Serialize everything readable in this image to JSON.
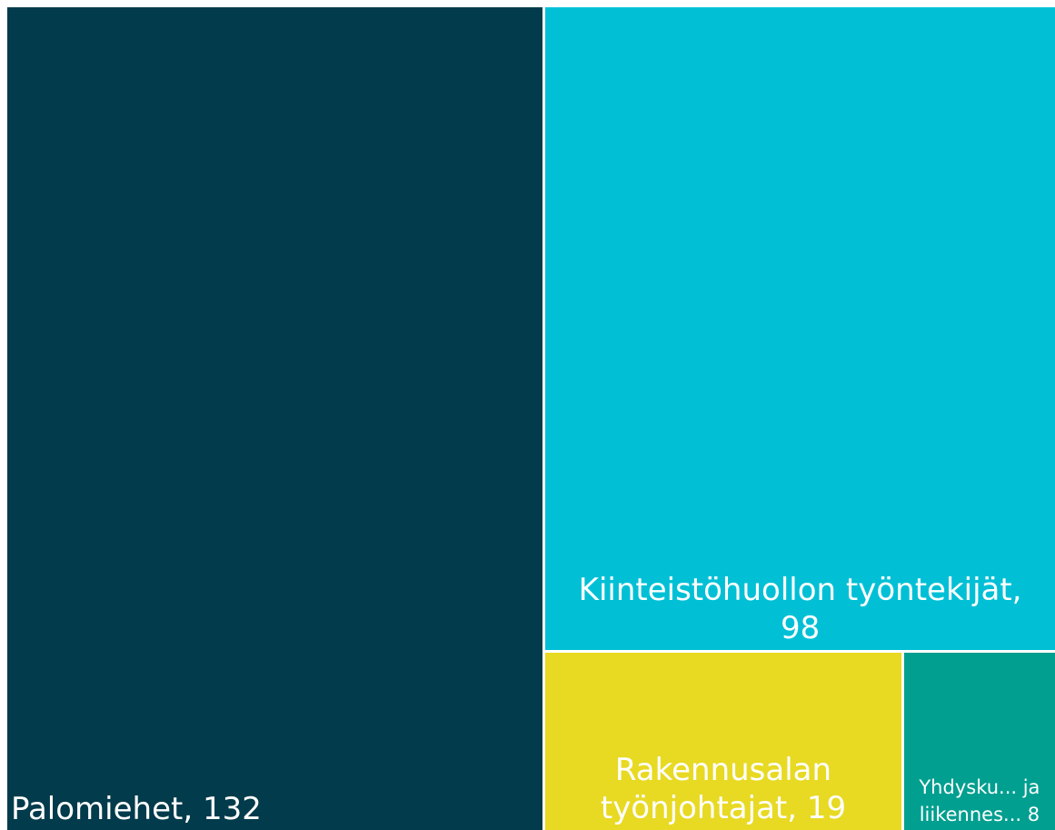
{
  "chart_data": {
    "type": "treemap",
    "categories": [
      "Palomiehet, 132",
      "Kiinteistöhuollon työntekijät, 98",
      "Rakennusalan työnjohtajat, 19",
      "Yhdysku... ja liikennes... 8"
    ],
    "values": [
      132,
      98,
      19,
      8
    ],
    "colors": [
      "#023b4b",
      "#01c0d6",
      "#e8d923",
      "#009f90"
    ]
  }
}
